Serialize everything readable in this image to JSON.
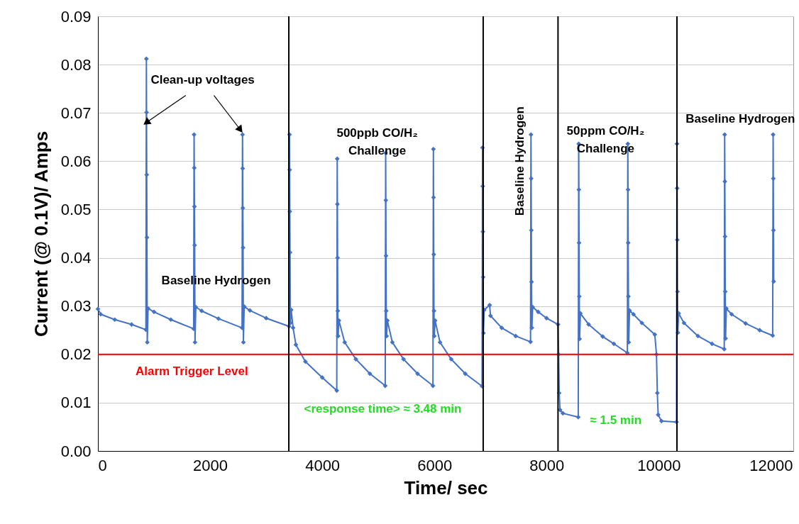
{
  "chart_data": {
    "type": "line",
    "xlabel": "Time/ sec",
    "ylabel": "Current (@ 0.1V)/ Amps",
    "xlim": [
      0,
      12400
    ],
    "xticks": [
      0,
      2000,
      4000,
      6000,
      8000,
      10000,
      12000
    ],
    "ylim": [
      0,
      0.09
    ],
    "yticks": [
      {
        "value": 0,
        "label": "0.00"
      },
      {
        "value": 0.01,
        "label": "0.01"
      },
      {
        "value": 0.02,
        "label": "0.02"
      },
      {
        "value": 0.03,
        "label": "0.03"
      },
      {
        "value": 0.04,
        "label": "0.04"
      },
      {
        "value": 0.05,
        "label": "0.05"
      },
      {
        "value": 0.06,
        "label": "0.06"
      },
      {
        "value": 0.07,
        "label": "0.07"
      },
      {
        "value": 0.08,
        "label": "0.08"
      },
      {
        "value": 0.09,
        "label": "0.09"
      }
    ],
    "grid": "y",
    "marker": "diamond",
    "line_style": "solid",
    "series": [
      {
        "color": "#4472c4",
        "x": [
          0,
          50,
          300,
          600,
          856,
          864,
          867,
          870,
          874,
          880,
          894,
          1000,
          1300,
          1707,
          1715,
          1718,
          1721,
          1725,
          1731,
          1745,
          1850,
          2150,
          2570,
          2578,
          2581,
          2584,
          2588,
          2594,
          2608,
          2710,
          3000,
          3408,
          3416,
          3419,
          3422,
          3426,
          3432,
          3446,
          3480,
          3530,
          3700,
          4000,
          4259,
          4267,
          4270,
          4273,
          4277,
          4283,
          4297,
          4400,
          4600,
          4850,
          5123,
          5131,
          5134,
          5137,
          5141,
          5147,
          5161,
          5250,
          5450,
          5700,
          5974,
          5982,
          5985,
          5988,
          5992,
          5998,
          6012,
          6100,
          6300,
          6550,
          6850,
          6858,
          6861,
          6864,
          6868,
          6874,
          6888,
          6985,
          7000,
          7200,
          7450,
          7714,
          7722,
          7725,
          7728,
          7732,
          7738,
          7752,
          7850,
          8000,
          8204,
          8215,
          8225,
          8240,
          8290,
          8565,
          8573,
          8576,
          8579,
          8583,
          8589,
          8603,
          8750,
          9000,
          9200,
          9441,
          9449,
          9452,
          9455,
          9459,
          9465,
          9479,
          9550,
          9700,
          9930,
          9960,
          9975,
          9990,
          10050,
          10317,
          10325,
          10328,
          10331,
          10335,
          10341,
          10355,
          10450,
          10700,
          10950,
          11168,
          11176,
          11179,
          11182,
          11186,
          11192,
          11206,
          11300,
          11550,
          11800,
          12032,
          12040,
          12043,
          12046,
          12050
        ],
        "values": [
          0.0294,
          0.0283,
          0.0272,
          0.0262,
          0.0251,
          0.0812,
          0.0701,
          0.0572,
          0.0442,
          0.0225,
          0.0295,
          0.0288,
          0.0272,
          0.0253,
          0.0655,
          0.0586,
          0.0506,
          0.0426,
          0.0225,
          0.0298,
          0.029,
          0.0274,
          0.0255,
          0.0655,
          0.0585,
          0.0503,
          0.0421,
          0.0225,
          0.0299,
          0.0291,
          0.0275,
          0.0258,
          0.0655,
          0.0582,
          0.0496,
          0.0411,
          0.0265,
          0.0292,
          0.0255,
          0.022,
          0.0185,
          0.0152,
          0.0125,
          0.0605,
          0.0511,
          0.04,
          0.029,
          0.0238,
          0.027,
          0.0225,
          0.019,
          0.016,
          0.0135,
          0.0617,
          0.0519,
          0.0404,
          0.029,
          0.0238,
          0.027,
          0.0225,
          0.019,
          0.016,
          0.0135,
          0.0625,
          0.0525,
          0.0407,
          0.029,
          0.0238,
          0.027,
          0.0225,
          0.019,
          0.016,
          0.0134,
          0.0628,
          0.0548,
          0.0454,
          0.036,
          0.0244,
          0.0292,
          0.0302,
          0.028,
          0.0255,
          0.0238,
          0.0226,
          0.0655,
          0.0564,
          0.0457,
          0.035,
          0.0255,
          0.0298,
          0.0288,
          0.0275,
          0.0262,
          0.02,
          0.012,
          0.0085,
          0.0078,
          0.007,
          0.0636,
          0.0541,
          0.0431,
          0.032,
          0.0232,
          0.0285,
          0.0262,
          0.0237,
          0.0222,
          0.0203,
          0.0636,
          0.0541,
          0.0431,
          0.032,
          0.0225,
          0.0291,
          0.0283,
          0.0265,
          0.0241,
          0.02,
          0.012,
          0.0075,
          0.0062,
          0.006,
          0.0636,
          0.0544,
          0.0437,
          0.033,
          0.0245,
          0.0285,
          0.0265,
          0.0238,
          0.0222,
          0.0211,
          0.0655,
          0.0558,
          0.0444,
          0.033,
          0.0233,
          0.0295,
          0.0283,
          0.0264,
          0.025,
          0.0239,
          0.0655,
          0.0564,
          0.0457,
          0.0351
        ]
      }
    ],
    "ref_lines": [
      {
        "axis": "y",
        "value": 0.02,
        "label": "Alarm Trigger Level",
        "color": "#ff0000"
      },
      {
        "axis": "x",
        "value": 3404,
        "color": "#000000"
      },
      {
        "axis": "x",
        "value": 6870,
        "color": "#000000"
      },
      {
        "axis": "x",
        "value": 8204,
        "color": "#000000"
      },
      {
        "axis": "x",
        "value": 10325,
        "color": "#000000"
      }
    ],
    "annotations": [
      {
        "text": "Clean-up voltages",
        "x": 864,
        "y": 0.068
      },
      "Baseline Hydrogen",
      "500ppb CO/H₂\nChallenge",
      "Baseline Hydrogen",
      "50ppm CO/H₂\nChallenge",
      "Baseline Hydrogen",
      "<response time> ≈ 3.48 min",
      "≈ 1.5 min"
    ]
  }
}
